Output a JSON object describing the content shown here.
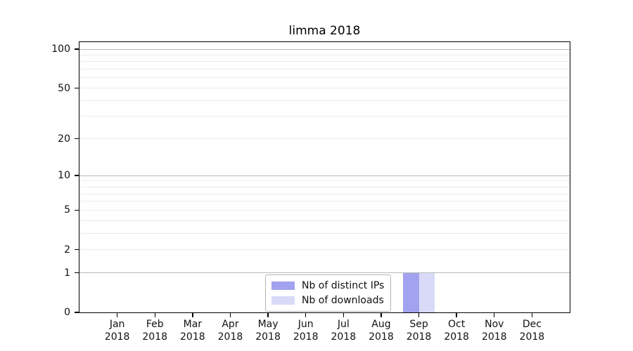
{
  "chart_data": {
    "type": "bar",
    "title": "limma 2018",
    "categories": [
      "Jan",
      "Feb",
      "Mar",
      "Apr",
      "May",
      "Jun",
      "Jul",
      "Aug",
      "Sep",
      "Oct",
      "Nov",
      "Dec"
    ],
    "x_tick_second_line": [
      "2018",
      "2018",
      "2018",
      "2018",
      "2018",
      "2018",
      "2018",
      "2018",
      "2018",
      "2018",
      "2018",
      "2018"
    ],
    "series": [
      {
        "name": "Nb of distinct IPs",
        "color": "#a2a2f0",
        "values": [
          0,
          0,
          0,
          0,
          0,
          0,
          0,
          0,
          1,
          0,
          0,
          0
        ]
      },
      {
        "name": "Nb of downloads",
        "color": "#d9d9f8",
        "values": [
          0,
          0,
          0,
          0,
          0,
          0,
          0,
          0,
          1,
          0,
          0,
          0
        ]
      }
    ],
    "y_axis": {
      "scale": "log1p",
      "tick_values": [
        0,
        1,
        2,
        5,
        10,
        20,
        50,
        100
      ],
      "gridlines_major": [
        1,
        10,
        100
      ],
      "gridlines_minor": [
        2,
        3,
        4,
        5,
        6,
        7,
        8,
        9,
        20,
        30,
        40,
        50,
        60,
        70,
        80,
        90
      ],
      "top_tick_value": 100
    },
    "legend": {
      "position": "bottom-center",
      "entries": [
        "Nb of distinct IPs",
        "Nb of downloads"
      ]
    },
    "grid": true,
    "colors": {
      "axis": "#000000",
      "grid_major": "#b8b8b8",
      "grid_minor": "#ebebeb",
      "text": "#111111",
      "background": "#ffffff"
    }
  }
}
